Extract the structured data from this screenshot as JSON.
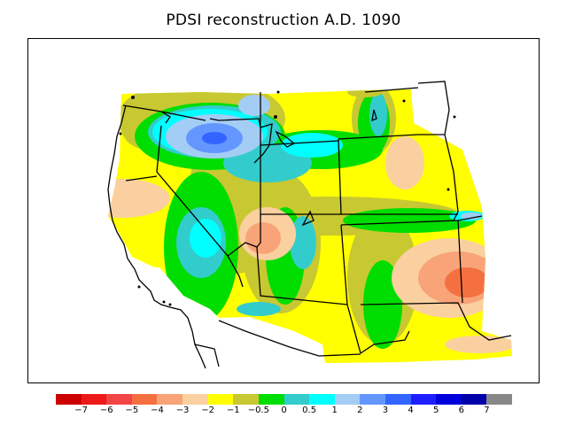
{
  "title": "PDSI reconstruction A.D. 1090",
  "colorbar": {
    "colors": [
      "#cc0000",
      "#ee1a1a",
      "#f24545",
      "#f57040",
      "#f8a478",
      "#fbd0a0",
      "#ffff00",
      "#c8c832",
      "#00dd00",
      "#33cccc",
      "#00ffff",
      "#a4cdf5",
      "#6496ff",
      "#3264ff",
      "#1e1eff",
      "#0000dd",
      "#0000aa",
      "#888888"
    ],
    "tick_labels": [
      "−7",
      "−6",
      "−5",
      "−4",
      "−3",
      "−2",
      "−1",
      "−0.5",
      "0",
      "0.5",
      "1",
      "2",
      "3",
      "4",
      "5",
      "6",
      "7"
    ]
  }
}
